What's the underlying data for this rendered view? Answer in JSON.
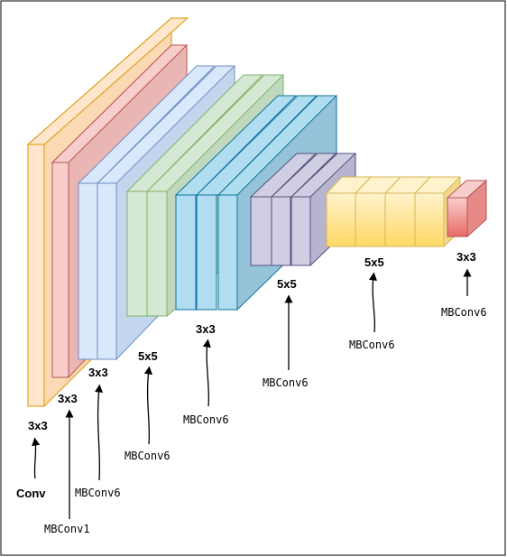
{
  "kernels": {
    "conv": "3x3",
    "mbconv1": "3x3",
    "mbconv6_a": "3x3",
    "mbconv6_b": "5x5",
    "mbconv6_c": "3x3",
    "mbconv6_d": "5x5",
    "mbconv6_e": "5x5",
    "mbconv6_f": "3x3"
  },
  "layers": {
    "conv": "Conv",
    "mbconv1": "MBConv1",
    "mbconv6_a": "MBConv6",
    "mbconv6_b": "MBConv6",
    "mbconv6_c": "MBConv6",
    "mbconv6_d": "MBConv6",
    "mbconv6_e": "MBConv6",
    "mbconv6_f": "MBConv6"
  },
  "colors": {
    "conv": "#ffe6cc",
    "mbconv1": "#f8cecc",
    "mbconv6_a": "#dae8fc",
    "mbconv6_b": "#d5e8d4",
    "mbconv6_c": "#b1ddf0",
    "mbconv6_d": "#d0cee2",
    "mbconv6_e": "#ffe599",
    "mbconv6_f": "#f19c99"
  }
}
